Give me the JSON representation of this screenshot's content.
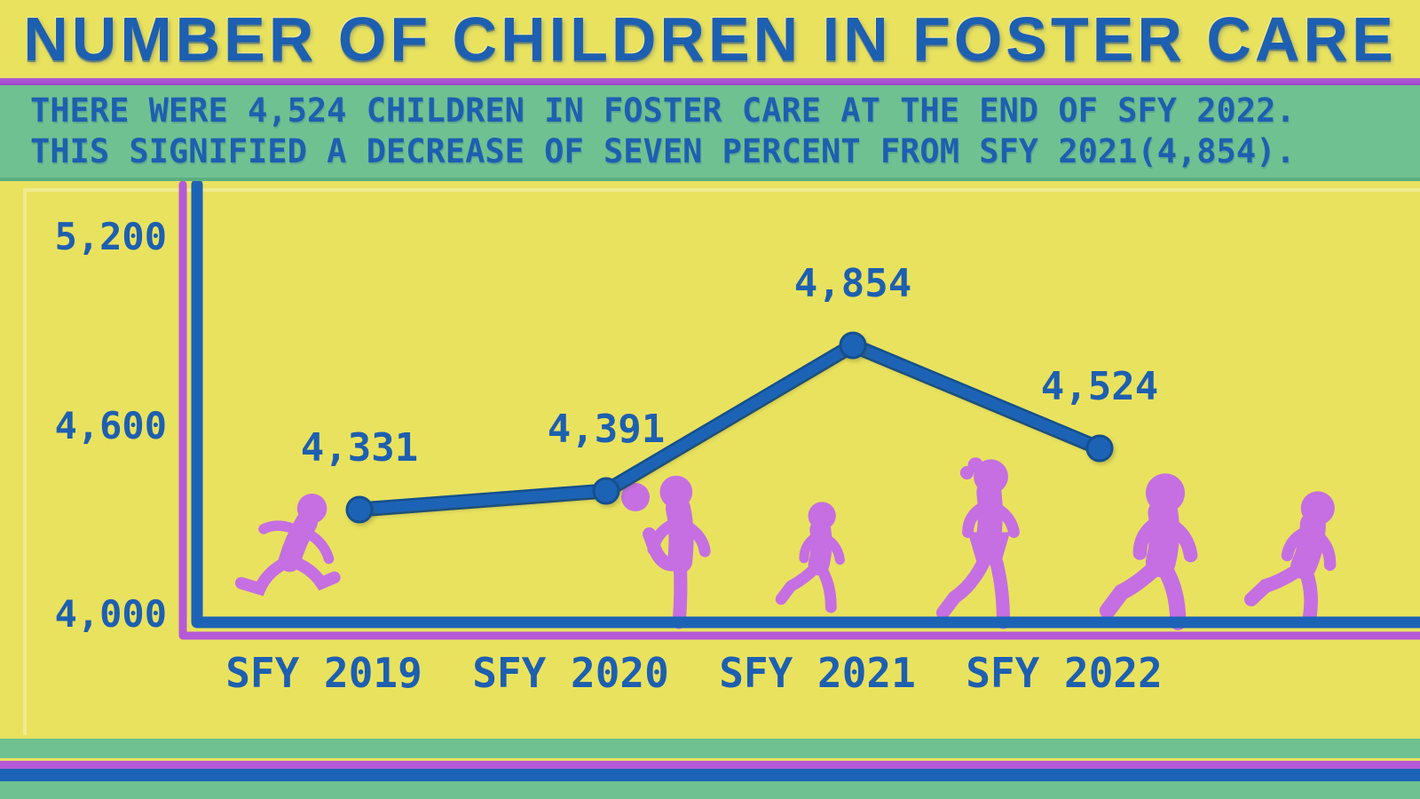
{
  "header": {
    "title": "NUMBER OF CHILDREN IN FOSTER CARE"
  },
  "summary": {
    "line1": "THERE WERE 4,524 CHILDREN IN FOSTER CARE AT THE END OF SFY 2022.",
    "line2": "THIS SIGNIFIED A DECREASE OF SEVEN PERCENT FROM SFY 2021(4,854)."
  },
  "chart_data": {
    "type": "line",
    "categories": [
      "SFY 2019",
      "SFY 2020",
      "SFY 2021",
      "SFY 2022"
    ],
    "values": [
      4331,
      4391,
      4854,
      4524
    ],
    "value_labels": [
      "4,331",
      "4,391",
      "4,854",
      "4,524"
    ],
    "y_ticks": [
      4000,
      4600,
      5200
    ],
    "y_tick_labels": [
      "4,000",
      "4,600",
      "5,200"
    ],
    "ylim": [
      4000,
      5350
    ],
    "xlabel": "",
    "ylabel": "",
    "grid": false,
    "legend": "none"
  },
  "decorations": {
    "silhouettes": [
      "child-jumping-icon",
      "soccer-ball-icon",
      "child-kicking-ball-icon",
      "child-running-small-icon",
      "girl-running-icon",
      "child-running-icon",
      "child-skipping-icon"
    ]
  },
  "colors": {
    "yellow_bg": "#e9e25f",
    "green_banner": "#6fc191",
    "blue_text": "#1d5fb0",
    "blue_line": "#1d63b5",
    "purple_accent": "#b55ad6",
    "violet_silhouette": "#c56fe2"
  }
}
